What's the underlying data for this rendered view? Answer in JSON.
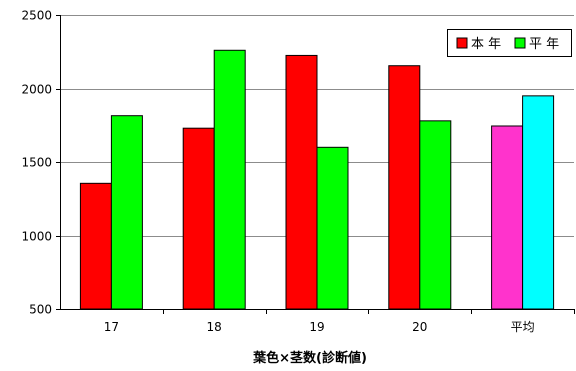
{
  "chart_data": {
    "type": "bar",
    "categories": [
      "17",
      "18",
      "19",
      "20",
      "平均"
    ],
    "series": [
      {
        "name": "本 年",
        "values": [
          1355,
          1730,
          2225,
          2155,
          1745
        ],
        "color": "#ff0000",
        "highlight_color": "#ff33cc"
      },
      {
        "name": "平 年",
        "values": [
          1815,
          2260,
          1600,
          1780,
          1950
        ],
        "color": "#00ff00",
        "highlight_color": "#00ffff"
      }
    ],
    "highlight_category": "平均",
    "xlabel": "葉色×茎数(診断値)",
    "ylabel": "",
    "ylim": [
      500,
      2500
    ],
    "yticks": [
      500,
      1000,
      1500,
      2000,
      2500
    ],
    "grid": true,
    "legend_position": "top-right"
  }
}
